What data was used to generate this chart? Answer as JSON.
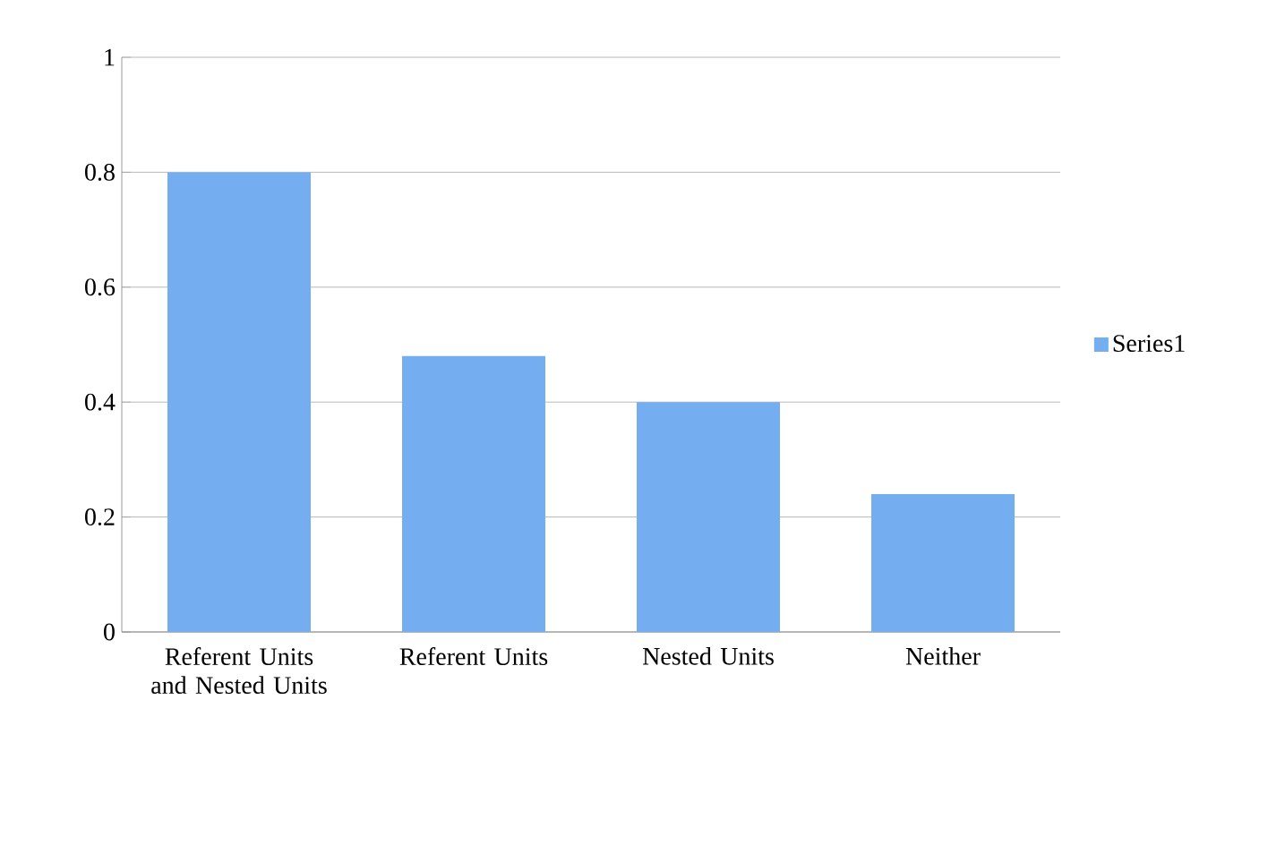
{
  "chart_data": {
    "type": "bar",
    "categories": [
      "Referent Units and Nested Units",
      "Referent Units",
      "Nested Units",
      "Neither"
    ],
    "series": [
      {
        "name": "Series1",
        "color": "#74aef0",
        "values": [
          0.8,
          0.48,
          0.4,
          0.24
        ]
      }
    ],
    "ylim": [
      0,
      1
    ],
    "yticks": [
      0,
      0.2,
      0.4,
      0.6,
      0.8,
      1
    ],
    "grid": "y",
    "legend": "right"
  }
}
